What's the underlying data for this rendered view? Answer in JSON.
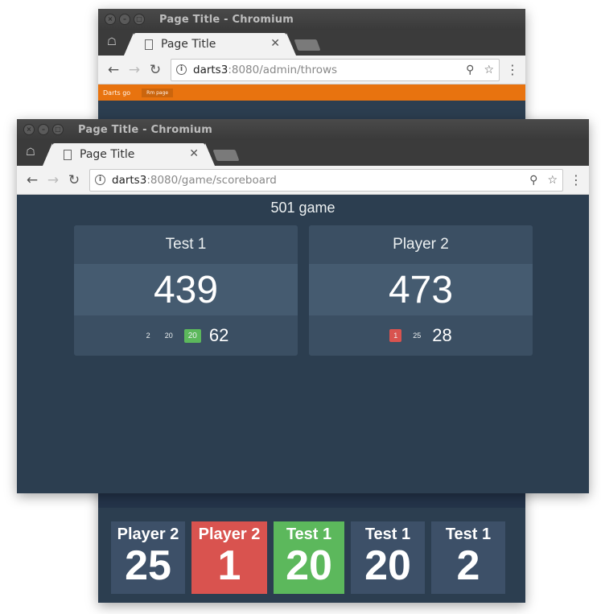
{
  "back_window": {
    "title": "Page Title - Chromium",
    "tab_title": "Page Title",
    "url_host": "darts3",
    "url_rest": ":8080/admin/throws",
    "orange_bar": {
      "brand": "Darts go",
      "button": "Rm page"
    }
  },
  "front_window": {
    "title": "Page Title - Chromium",
    "tab_title": "Page Title",
    "url_host": "darts3",
    "url_rest": ":8080/game/scoreboard"
  },
  "scoreboard": {
    "title": "501 game",
    "players": [
      {
        "name": "Test 1",
        "score": "439",
        "throws": [
          "2",
          "20",
          "20"
        ],
        "throw_status": [
          "plain",
          "plain",
          "green"
        ],
        "total": "62"
      },
      {
        "name": "Player 2",
        "score": "473",
        "throws": [
          "1",
          "25"
        ],
        "throw_status": [
          "red",
          "plain"
        ],
        "total": "28"
      }
    ]
  },
  "recent_throws": [
    {
      "player": "Player 2",
      "value": "25",
      "color": "#3d5068"
    },
    {
      "player": "Player 2",
      "value": "1",
      "color": "#d9534f"
    },
    {
      "player": "Test 1",
      "value": "20",
      "color": "#5cb85c"
    },
    {
      "player": "Test 1",
      "value": "20",
      "color": "#3d5068"
    },
    {
      "player": "Test 1",
      "value": "2",
      "color": "#3d5068"
    }
  ],
  "colors": {
    "background": "#2c3e50",
    "accent_orange": "#e8730f",
    "green": "#5cb85c",
    "red": "#d9534f"
  }
}
